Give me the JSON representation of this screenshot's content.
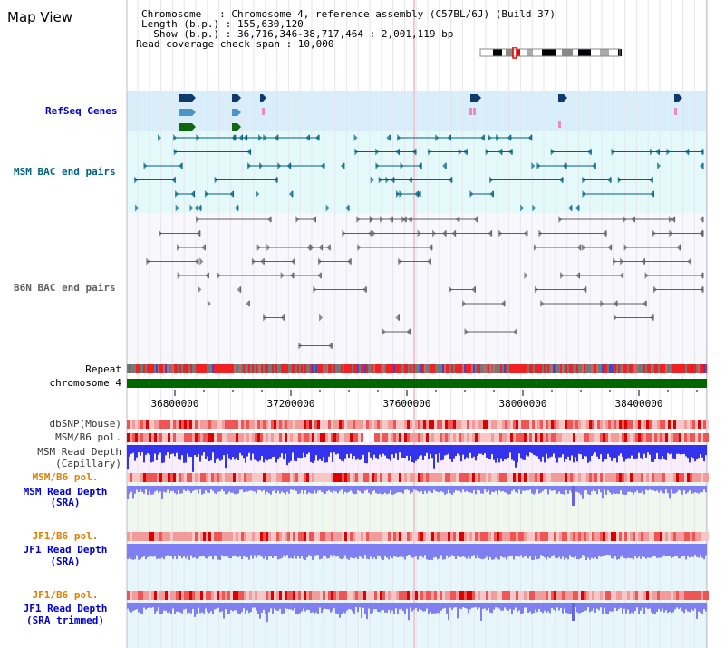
{
  "page": {
    "title": "Map View"
  },
  "info": {
    "chromosome_line": "Chromosome   : Chromosome 4, reference assembly (C57BL/6J) (Build 37)",
    "length_line": "Length (b.p.) : 155,630,120",
    "show_line": "  Show (b.p.) : 36,716,346-38,717,464 : 2,001,119 bp",
    "coverage_line": "Read coverage check span : 10,000"
  },
  "tracks": {
    "refseq_label": "RefSeq Genes",
    "msm_bac_label": "MSM BAC end pairs",
    "b6n_bac_label": "B6N BAC end pairs",
    "repeat_label": "Repeat",
    "chromosome_label": "chromosome 4",
    "dbsnp_label": "dbSNP(Mouse)",
    "msm_b6_pol_1": "MSM/B6 pol.",
    "msm_read_depth_capillary_1": "MSM Read Depth",
    "msm_read_depth_capillary_2": "(Capillary)",
    "msm_b6_pol_2": "MSM/B6 pol.",
    "msm_read_depth_sra_1": "MSM Read Depth",
    "msm_read_depth_sra_2": "(SRA)",
    "jf1_b6_pol_1": "JF1/B6 pol.",
    "jf1_read_depth_sra_1": "JF1 Read Depth",
    "jf1_read_depth_sra_2": "(SRA)",
    "jf1_b6_pol_2": "JF1/B6 pol.",
    "jf1_read_depth_trim_1": "JF1 Read Depth",
    "jf1_read_depth_trim_2": "(SRA trimmed)"
  },
  "axis": {
    "ticks": [
      "36800000",
      "37200000",
      "37600000",
      "38000000",
      "38400000"
    ]
  },
  "colors": {
    "refseq_bg": "#d8eefa",
    "bac_bg": "#e4fafa",
    "b6n_bg": "#f8f8fc",
    "chromosome_bar": "#006600",
    "msm_color": "#006080",
    "b6n_color": "#606060",
    "depth_blue": "#3333ee",
    "depth_light": "#7f7ff2",
    "pol_label": "#e08000",
    "blue_label": "#0000cc"
  }
}
